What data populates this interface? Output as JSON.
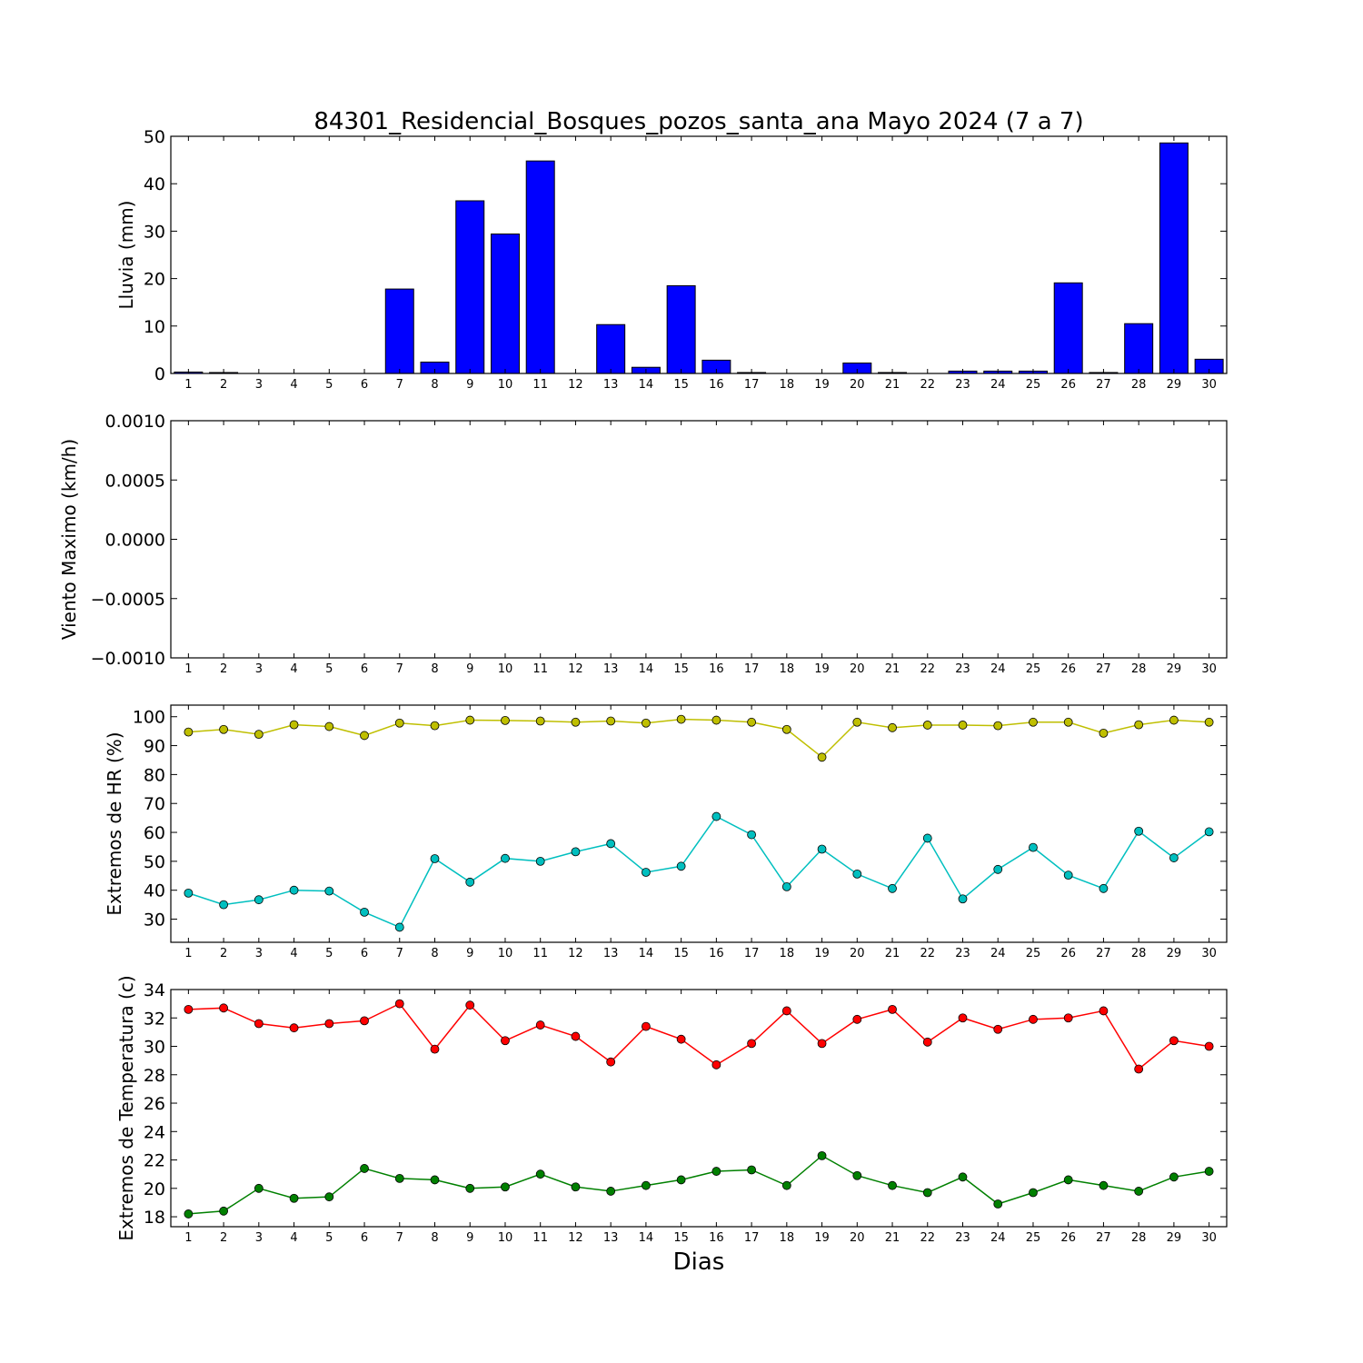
{
  "chart_data": [
    {
      "type": "bar",
      "title": "84301_Residencial_Bosques_pozos_santa_ana Mayo 2024  (7 a 7)",
      "ylabel": "Lluvia (mm)",
      "xlabel": "",
      "categories": [
        "1",
        "2",
        "3",
        "4",
        "5",
        "6",
        "7",
        "8",
        "9",
        "10",
        "11",
        "12",
        "13",
        "14",
        "15",
        "16",
        "17",
        "18",
        "19",
        "20",
        "21",
        "22",
        "23",
        "24",
        "25",
        "26",
        "27",
        "28",
        "29",
        "30"
      ],
      "ylim": [
        0,
        50
      ],
      "yticks": [
        "0",
        "10",
        "20",
        "30",
        "40",
        "50"
      ],
      "series": [
        {
          "values": [
            0.3,
            0.2,
            0,
            0,
            0,
            0,
            17.8,
            2.4,
            36.4,
            29.4,
            44.8,
            0,
            10.3,
            1.3,
            18.5,
            2.8,
            0.2,
            0,
            0,
            2.2,
            0.2,
            0,
            0.5,
            0.5,
            0.5,
            19.1,
            0.2,
            10.5,
            48.6,
            3.0
          ],
          "color": "#0000ff"
        }
      ],
      "grid": false
    },
    {
      "type": "line",
      "title": "",
      "ylabel": "Viento Maximo (km/h)",
      "xlabel": "",
      "categories": [
        "1",
        "2",
        "3",
        "4",
        "5",
        "6",
        "7",
        "8",
        "9",
        "10",
        "11",
        "12",
        "13",
        "14",
        "15",
        "16",
        "17",
        "18",
        "19",
        "20",
        "21",
        "22",
        "23",
        "24",
        "25",
        "26",
        "27",
        "28",
        "29",
        "30"
      ],
      "ylim": [
        -0.001,
        0.001
      ],
      "yticks": [
        "−0.0010",
        "−0.0005",
        "0.0000",
        "0.0005",
        "0.0010"
      ],
      "series": [],
      "grid": false
    },
    {
      "type": "line",
      "title": "",
      "ylabel": "Extremos de HR (%)",
      "xlabel": "",
      "categories": [
        "1",
        "2",
        "3",
        "4",
        "5",
        "6",
        "7",
        "8",
        "9",
        "10",
        "11",
        "12",
        "13",
        "14",
        "15",
        "16",
        "17",
        "18",
        "19",
        "20",
        "21",
        "22",
        "23",
        "24",
        "25",
        "26",
        "27",
        "28",
        "29",
        "30"
      ],
      "ylim": [
        22,
        104
      ],
      "yticks": [
        "30",
        "40",
        "50",
        "60",
        "70",
        "80",
        "90",
        "100"
      ],
      "series": [
        {
          "values": [
            94.7,
            95.6,
            93.9,
            97.2,
            96.6,
            93.5,
            97.8,
            96.9,
            98.8,
            98.7,
            98.5,
            98.1,
            98.5,
            97.8,
            99.1,
            98.8,
            98.1,
            95.6,
            86.0,
            98.1,
            96.2,
            97.1,
            97.1,
            96.9,
            98.1,
            98.1,
            94.3,
            97.2,
            98.8,
            98.1
          ],
          "color": "#bfbf00"
        },
        {
          "values": [
            39.0,
            35.0,
            36.7,
            40.0,
            39.7,
            32.4,
            27.2,
            50.9,
            42.8,
            51.0,
            50.0,
            53.3,
            56.1,
            46.2,
            48.3,
            65.5,
            59.2,
            41.2,
            54.2,
            45.6,
            40.6,
            58.0,
            37.0,
            47.2,
            54.8,
            45.2,
            40.6,
            60.4,
            51.2,
            60.2
          ],
          "color": "#00bfbf"
        }
      ],
      "grid": false
    },
    {
      "type": "line",
      "title": "",
      "ylabel": "Extremos de Temperatura (c)",
      "xlabel": "Dias",
      "categories": [
        "1",
        "2",
        "3",
        "4",
        "5",
        "6",
        "7",
        "8",
        "9",
        "10",
        "11",
        "12",
        "13",
        "14",
        "15",
        "16",
        "17",
        "18",
        "19",
        "20",
        "21",
        "22",
        "23",
        "24",
        "25",
        "26",
        "27",
        "28",
        "29",
        "30"
      ],
      "ylim": [
        17.3,
        34
      ],
      "yticks": [
        "18",
        "20",
        "22",
        "24",
        "26",
        "28",
        "30",
        "32",
        "34"
      ],
      "series": [
        {
          "values": [
            32.6,
            32.7,
            31.6,
            31.3,
            31.6,
            31.8,
            33.0,
            29.8,
            32.9,
            30.4,
            31.5,
            30.7,
            28.9,
            31.4,
            30.5,
            28.7,
            30.2,
            32.5,
            30.2,
            31.9,
            32.6,
            30.3,
            32.0,
            31.2,
            31.9,
            32.0,
            32.5,
            28.4,
            30.4,
            30.0
          ],
          "color": "#ff0000"
        },
        {
          "values": [
            18.2,
            18.4,
            20.0,
            19.3,
            19.4,
            21.4,
            20.7,
            20.6,
            20.0,
            20.1,
            21.0,
            20.1,
            19.8,
            20.2,
            20.6,
            21.2,
            21.3,
            20.2,
            22.3,
            20.9,
            20.2,
            19.7,
            20.8,
            18.9,
            19.7,
            20.6,
            20.2,
            19.8,
            20.8,
            21.2
          ],
          "color": "#008000"
        }
      ],
      "grid": false
    }
  ]
}
